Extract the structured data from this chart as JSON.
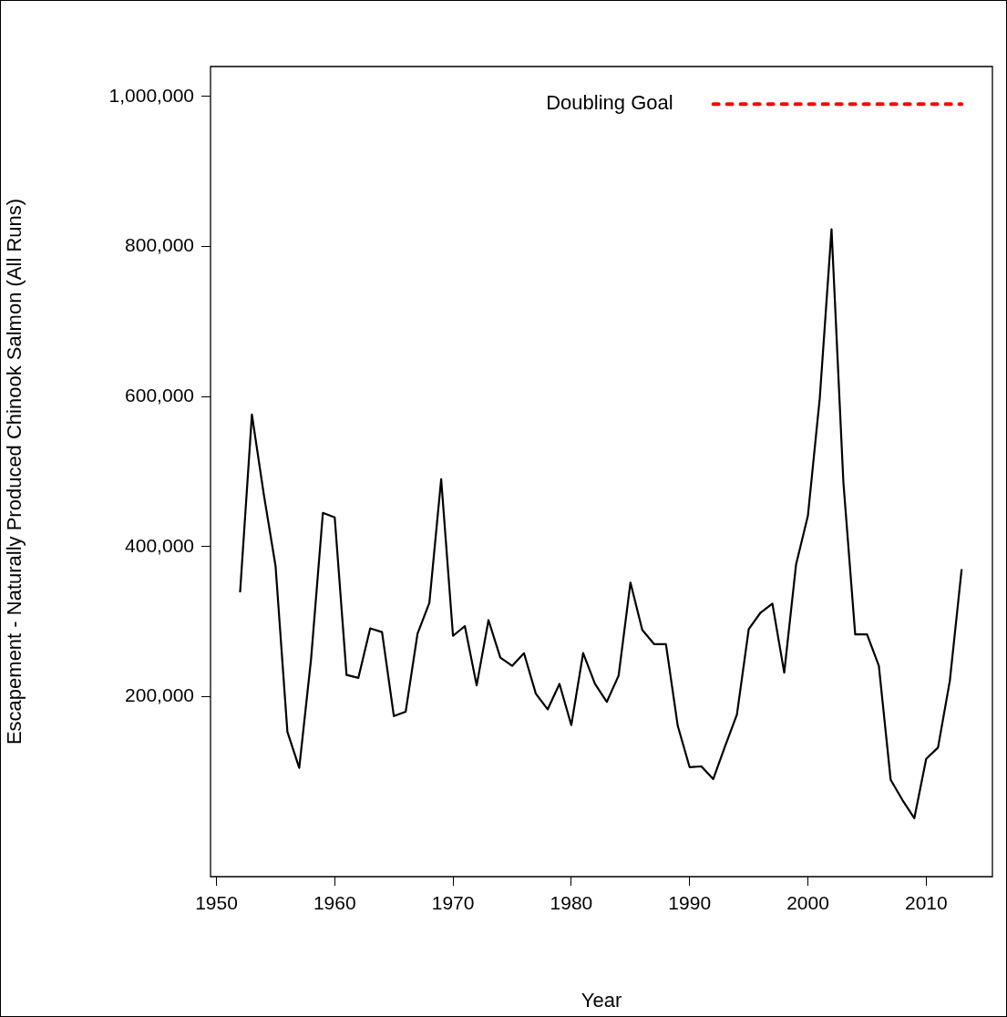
{
  "chart_data": {
    "type": "line",
    "xlabel": "Year",
    "ylabel": "Escapement - Naturally Produced Chinook Salmon (All Runs)",
    "x": [
      1952,
      1953,
      1954,
      1955,
      1956,
      1957,
      1958,
      1959,
      1960,
      1961,
      1962,
      1963,
      1964,
      1965,
      1966,
      1967,
      1968,
      1969,
      1970,
      1971,
      1972,
      1973,
      1974,
      1975,
      1976,
      1977,
      1978,
      1979,
      1980,
      1981,
      1982,
      1983,
      1984,
      1985,
      1986,
      1987,
      1988,
      1989,
      1990,
      1991,
      1992,
      1993,
      1994,
      1995,
      1996,
      1997,
      1998,
      1999,
      2000,
      2001,
      2002,
      2003,
      2004,
      2005,
      2006,
      2007,
      2008,
      2009,
      2010,
      2011,
      2012,
      2013
    ],
    "series": [
      {
        "color": "#000000",
        "line_style": "solid",
        "values": [
          339000,
          576000,
          470000,
          374000,
          153000,
          105000,
          250000,
          445000,
          439000,
          229000,
          225000,
          291000,
          286000,
          174000,
          180000,
          284000,
          325000,
          490000,
          281000,
          294000,
          215000,
          302000,
          252000,
          241000,
          258000,
          204000,
          183000,
          217000,
          162000,
          258000,
          217000,
          193000,
          228000,
          352000,
          289000,
          270000,
          270000,
          161000,
          106000,
          107000,
          90000,
          134000,
          176000,
          290000,
          312000,
          324000,
          232000,
          376000,
          441000,
          597000,
          823000,
          486000,
          283000,
          283000,
          241000,
          89000,
          62000,
          38000,
          117000,
          132000,
          221000,
          370000
        ]
      },
      {
        "name": "Doubling Goal",
        "color": "#ff0000",
        "line_style": "dotted",
        "x": [
          1992,
          2013
        ],
        "values": [
          990000,
          990000
        ]
      }
    ],
    "xlim": [
      1949.5,
      2015.6
    ],
    "xticks": [
      1950,
      1960,
      1970,
      1980,
      1990,
      2000,
      2010
    ],
    "ylim": [
      -40000,
      1040000
    ],
    "yticks": [
      {
        "value": 200000,
        "label": "200,000"
      },
      {
        "value": 400000,
        "label": "400,000"
      },
      {
        "value": 600000,
        "label": "600,000"
      },
      {
        "value": 800000,
        "label": "800,000"
      },
      {
        "value": 1000000,
        "label": "1,000,000"
      }
    ],
    "grid": false,
    "legend": false,
    "marker": "none"
  }
}
